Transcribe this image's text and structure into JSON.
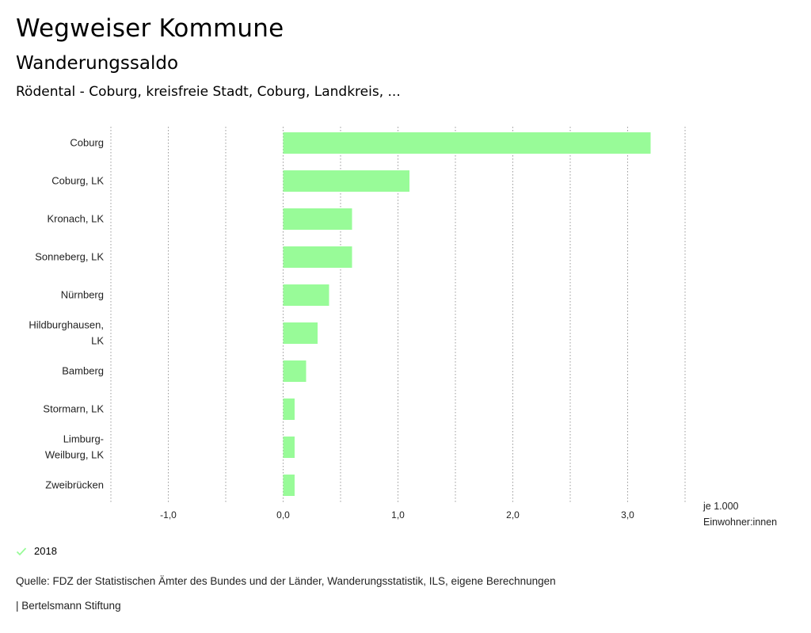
{
  "header": {
    "title": "Wegweiser Kommune",
    "subtitle": "Wanderungssaldo",
    "region": "Rödental - Coburg, kreisfreie Stadt, Coburg, Landkreis, ..."
  },
  "chart_data": {
    "type": "bar",
    "orientation": "horizontal",
    "categories": [
      [
        "Coburg"
      ],
      [
        "Coburg, LK"
      ],
      [
        "Kronach, LK"
      ],
      [
        "Sonneberg, LK"
      ],
      [
        "Nürnberg"
      ],
      [
        "Hildburghausen,",
        "LK"
      ],
      [
        "Bamberg"
      ],
      [
        "Stormarn, LK"
      ],
      [
        "Limburg-",
        "Weilburg, LK"
      ],
      [
        "Zweibrücken"
      ]
    ],
    "series": [
      {
        "name": "2018",
        "color": "#98fb98",
        "values": [
          3.2,
          1.1,
          0.6,
          0.6,
          0.4,
          0.3,
          0.2,
          0.1,
          0.1,
          0.1
        ]
      }
    ],
    "xlim": [
      -1.5,
      3.5
    ],
    "ticks": [
      -1.0,
      0.0,
      1.0,
      2.0,
      3.0
    ],
    "tick_labels": [
      "-1,0",
      "0,0",
      "1,0",
      "2,0",
      "3,0"
    ],
    "grid_values": [
      -1.5,
      -1.0,
      -0.5,
      0.0,
      0.5,
      1.0,
      1.5,
      2.0,
      2.5,
      3.0,
      3.5
    ],
    "xlabel": [
      "je 1.000",
      "Einwohner:innen"
    ],
    "legend": {
      "label": "2018",
      "color": "#98fb98"
    }
  },
  "source": "Quelle: FDZ der Statistischen Ämter des Bundes und der Länder, Wanderungsstatistik, ILS, eigene Berechnungen",
  "footer": "| Bertelsmann Stiftung"
}
